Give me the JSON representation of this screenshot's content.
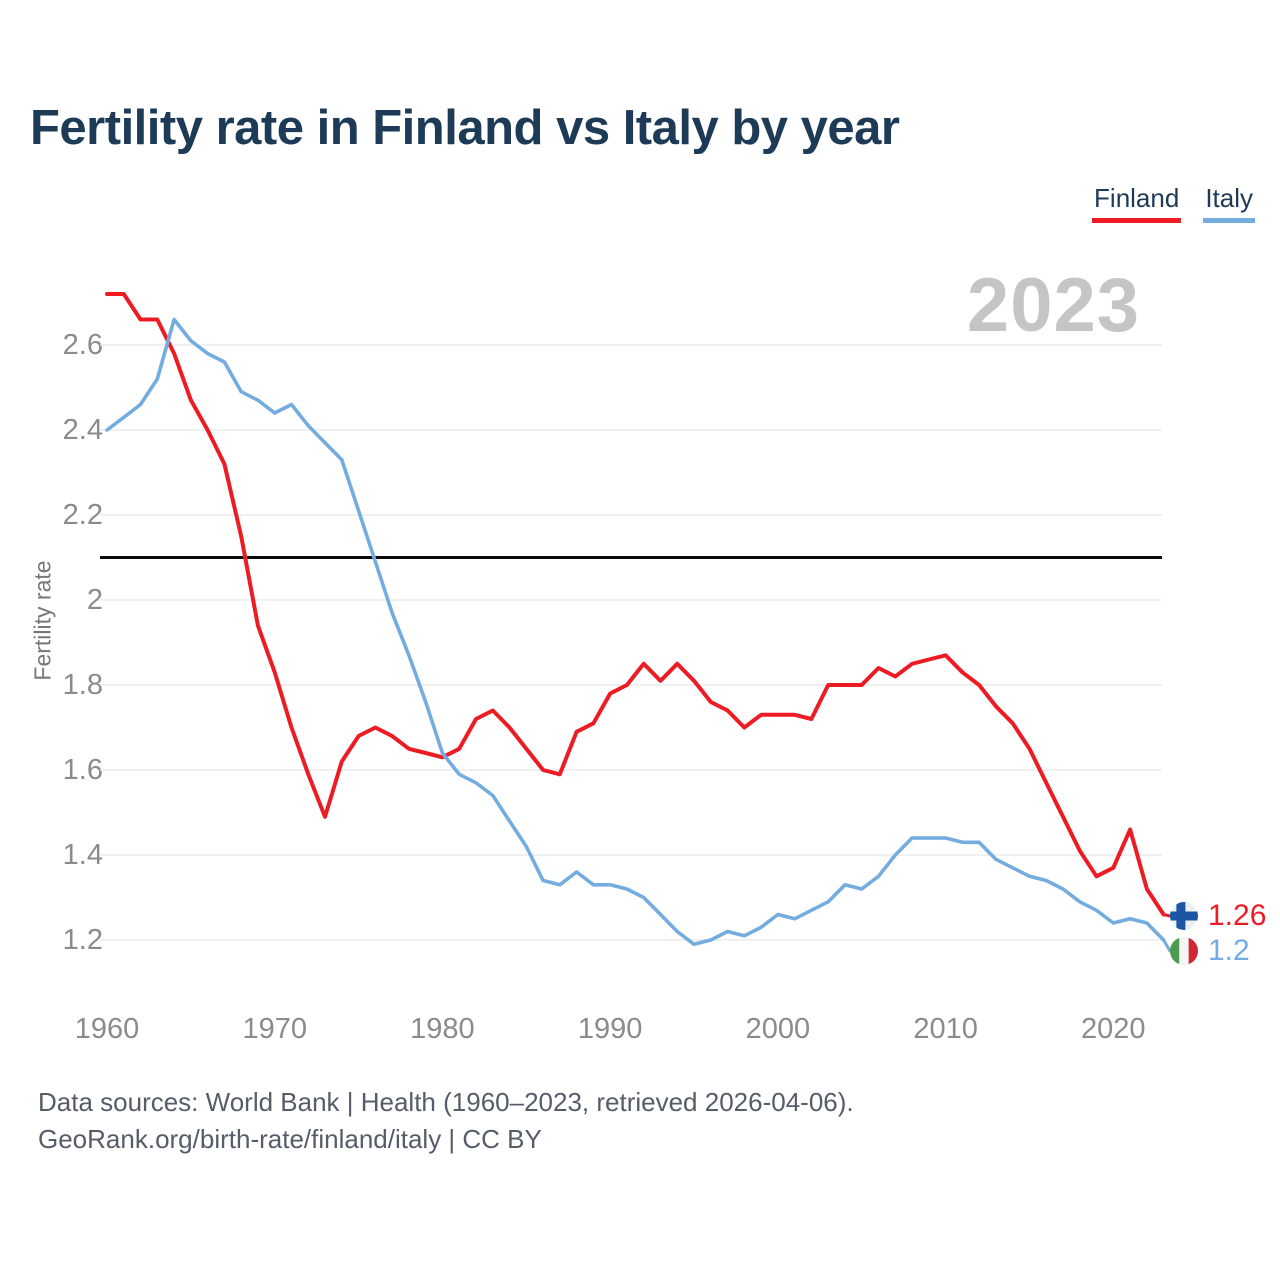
{
  "title": "Fertility rate in Finland vs Italy by year",
  "watermark": "2023",
  "legend": [
    {
      "label": "Finland",
      "color": "#ed1c24"
    },
    {
      "label": "Italy",
      "color": "#74ace0"
    }
  ],
  "y_axis": {
    "label": "Fertility rate",
    "ticks": [
      "2.6",
      "2.4",
      "2.2",
      "2",
      "1.8",
      "1.6",
      "1.4",
      "1.2"
    ]
  },
  "x_axis": {
    "ticks": [
      "1960",
      "1970",
      "1980",
      "1990",
      "2000",
      "2010",
      "2020"
    ]
  },
  "end_labels": [
    {
      "country": "Finland",
      "value": "1.26",
      "flag": "finland-flag-icon"
    },
    {
      "country": "Italy",
      "value": "1.2",
      "flag": "italy-flag-icon"
    }
  ],
  "footer": {
    "line1": "Data sources: World Bank | Health (1960–2023, retrieved 2026-04-06).",
    "line2": "GeoRank.org/birth-rate/finland/italy | CC BY"
  },
  "chart_data": {
    "type": "line",
    "title": "Fertility rate in Finland vs Italy by year",
    "xlabel": "",
    "ylabel": "Fertility rate",
    "xlim": [
      1960,
      2023
    ],
    "ylim": [
      1.1,
      2.78
    ],
    "grid": "horizontal",
    "legend_position": "top-right",
    "hline": 2.1,
    "x": [
      1960,
      1961,
      1962,
      1963,
      1964,
      1965,
      1966,
      1967,
      1968,
      1969,
      1970,
      1971,
      1972,
      1973,
      1974,
      1975,
      1976,
      1977,
      1978,
      1979,
      1980,
      1981,
      1982,
      1983,
      1984,
      1985,
      1986,
      1987,
      1988,
      1989,
      1990,
      1991,
      1992,
      1993,
      1994,
      1995,
      1996,
      1997,
      1998,
      1999,
      2000,
      2001,
      2002,
      2003,
      2004,
      2005,
      2006,
      2007,
      2008,
      2009,
      2010,
      2011,
      2012,
      2013,
      2014,
      2015,
      2016,
      2017,
      2018,
      2019,
      2020,
      2021,
      2022,
      2023
    ],
    "series": [
      {
        "name": "Finland",
        "color": "#ed1c24",
        "values": [
          2.72,
          2.72,
          2.66,
          2.66,
          2.58,
          2.47,
          2.4,
          2.32,
          2.15,
          1.94,
          1.83,
          1.7,
          1.59,
          1.49,
          1.62,
          1.68,
          1.7,
          1.68,
          1.65,
          1.64,
          1.63,
          1.65,
          1.72,
          1.74,
          1.7,
          1.65,
          1.6,
          1.59,
          1.69,
          1.71,
          1.78,
          1.8,
          1.85,
          1.81,
          1.85,
          1.81,
          1.76,
          1.74,
          1.7,
          1.73,
          1.73,
          1.73,
          1.72,
          1.8,
          1.8,
          1.8,
          1.84,
          1.82,
          1.85,
          1.86,
          1.87,
          1.83,
          1.8,
          1.75,
          1.71,
          1.65,
          1.57,
          1.49,
          1.41,
          1.35,
          1.37,
          1.46,
          1.32,
          1.26
        ]
      },
      {
        "name": "Italy",
        "color": "#74ace0",
        "values": [
          2.4,
          2.43,
          2.46,
          2.52,
          2.66,
          2.61,
          2.58,
          2.56,
          2.49,
          2.47,
          2.44,
          2.46,
          2.41,
          2.37,
          2.33,
          2.21,
          2.09,
          1.97,
          1.87,
          1.76,
          1.64,
          1.59,
          1.57,
          1.54,
          1.48,
          1.42,
          1.34,
          1.33,
          1.36,
          1.33,
          1.33,
          1.32,
          1.3,
          1.26,
          1.22,
          1.19,
          1.2,
          1.22,
          1.21,
          1.23,
          1.26,
          1.25,
          1.27,
          1.29,
          1.33,
          1.32,
          1.35,
          1.4,
          1.44,
          1.44,
          1.44,
          1.43,
          1.43,
          1.39,
          1.37,
          1.35,
          1.34,
          1.32,
          1.29,
          1.27,
          1.24,
          1.25,
          1.24,
          1.2
        ]
      }
    ]
  }
}
